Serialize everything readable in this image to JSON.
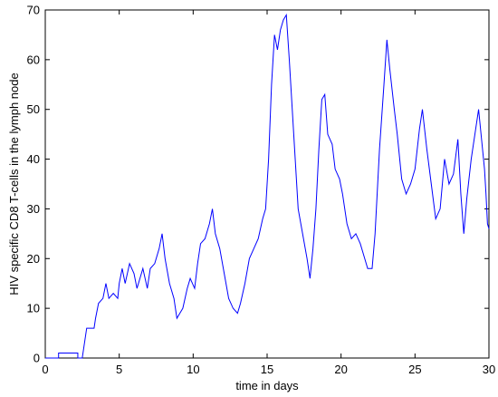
{
  "chart_data": {
    "type": "line",
    "xlabel": "time in days",
    "ylabel": "HIV specific CD8 T-cells in the lymph node",
    "color": "#0000ff",
    "x": [
      0,
      0.9,
      0.9,
      2.2,
      2.2,
      2.5,
      2.6,
      2.8,
      3.3,
      3.4,
      3.6,
      3.9,
      4.1,
      4.3,
      4.6,
      4.9,
      5.0,
      5.2,
      5.4,
      5.7,
      6.0,
      6.2,
      6.4,
      6.6,
      6.9,
      7.1,
      7.4,
      7.7,
      7.9,
      8.1,
      8.4,
      8.7,
      8.9,
      9.1,
      9.3,
      9.6,
      9.8,
      10.1,
      10.3,
      10.5,
      10.8,
      11.1,
      11.3,
      11.5,
      11.8,
      12.1,
      12.4,
      12.7,
      13.0,
      13.2,
      13.5,
      13.8,
      14.1,
      14.4,
      14.7,
      14.9,
      15.1,
      15.3,
      15.5,
      15.7,
      15.9,
      16.1,
      16.3,
      16.5,
      16.7,
      16.9,
      17.1,
      17.4,
      17.7,
      17.9,
      18.1,
      18.3,
      18.5,
      18.7,
      18.9,
      19.1,
      19.4,
      19.6,
      19.9,
      20.1,
      20.4,
      20.7,
      21.0,
      21.3,
      21.6,
      21.8,
      22.1,
      22.3,
      22.6,
      22.9,
      23.1,
      23.3,
      23.6,
      23.8,
      24.1,
      24.4,
      24.7,
      25.0,
      25.3,
      25.5,
      25.8,
      26.1,
      26.4,
      26.7,
      27.0,
      27.3,
      27.6,
      27.9,
      28.1,
      28.3,
      28.5,
      28.8,
      29.1,
      29.3,
      29.5,
      29.7,
      29.8,
      29.9,
      30.0
    ],
    "values": [
      0,
      0,
      1,
      1,
      0,
      0,
      2,
      6,
      6,
      8,
      11,
      12,
      15,
      12,
      13,
      12,
      15,
      18,
      15,
      19,
      17,
      14,
      16,
      18,
      14,
      18,
      19,
      22,
      25,
      20,
      15,
      12,
      8,
      9,
      10,
      14,
      16,
      14,
      19,
      23,
      24,
      27,
      30,
      25,
      22,
      17,
      12,
      10,
      9,
      11,
      15,
      20,
      22,
      24,
      28,
      30,
      40,
      55,
      65,
      62,
      66,
      68,
      69,
      60,
      50,
      40,
      30,
      25,
      20,
      16,
      22,
      30,
      42,
      52,
      53,
      45,
      43,
      38,
      36,
      33,
      27,
      24,
      25,
      23,
      20,
      18,
      18,
      25,
      42,
      55,
      64,
      58,
      50,
      45,
      36,
      33,
      35,
      38,
      46,
      50,
      42,
      35,
      28,
      30,
      40,
      35,
      37,
      44,
      33,
      25,
      32,
      40,
      46,
      50,
      44,
      38,
      33,
      27,
      26
    ],
    "xlim": [
      0,
      30
    ],
    "xticks": [
      0,
      5,
      10,
      15,
      20,
      25,
      30
    ],
    "ylim": [
      0,
      70
    ],
    "yticks": [
      0,
      10,
      20,
      30,
      40,
      50,
      60,
      70
    ]
  }
}
